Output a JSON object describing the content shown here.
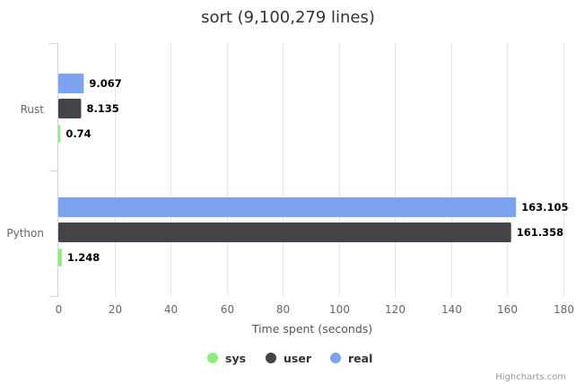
{
  "chart_data": {
    "type": "bar",
    "orientation": "horizontal",
    "title": "sort (9,100,279 lines)",
    "xlabel": "Time spent (seconds)",
    "ylabel": "",
    "categories": [
      "Rust",
      "Python"
    ],
    "xlim": [
      0,
      180
    ],
    "x_ticks": [
      "0",
      "20",
      "40",
      "60",
      "80",
      "100",
      "120",
      "140",
      "160",
      "180"
    ],
    "grid": "vertical",
    "legend_position": "bottom",
    "series": [
      {
        "name": "real",
        "color": "#7CA2F0",
        "values": [
          9.067,
          163.105
        ],
        "labels": [
          "9.067",
          "163.105"
        ]
      },
      {
        "name": "user",
        "color": "#434348",
        "values": [
          8.135,
          161.358
        ],
        "labels": [
          "8.135",
          "161.358"
        ]
      },
      {
        "name": "sys",
        "color": "#90ED7D",
        "values": [
          0.74,
          1.248
        ],
        "labels": [
          "0.74",
          "1.248"
        ]
      }
    ],
    "legend": [
      "sys",
      "user",
      "real"
    ]
  },
  "credits": "Highcharts.com"
}
